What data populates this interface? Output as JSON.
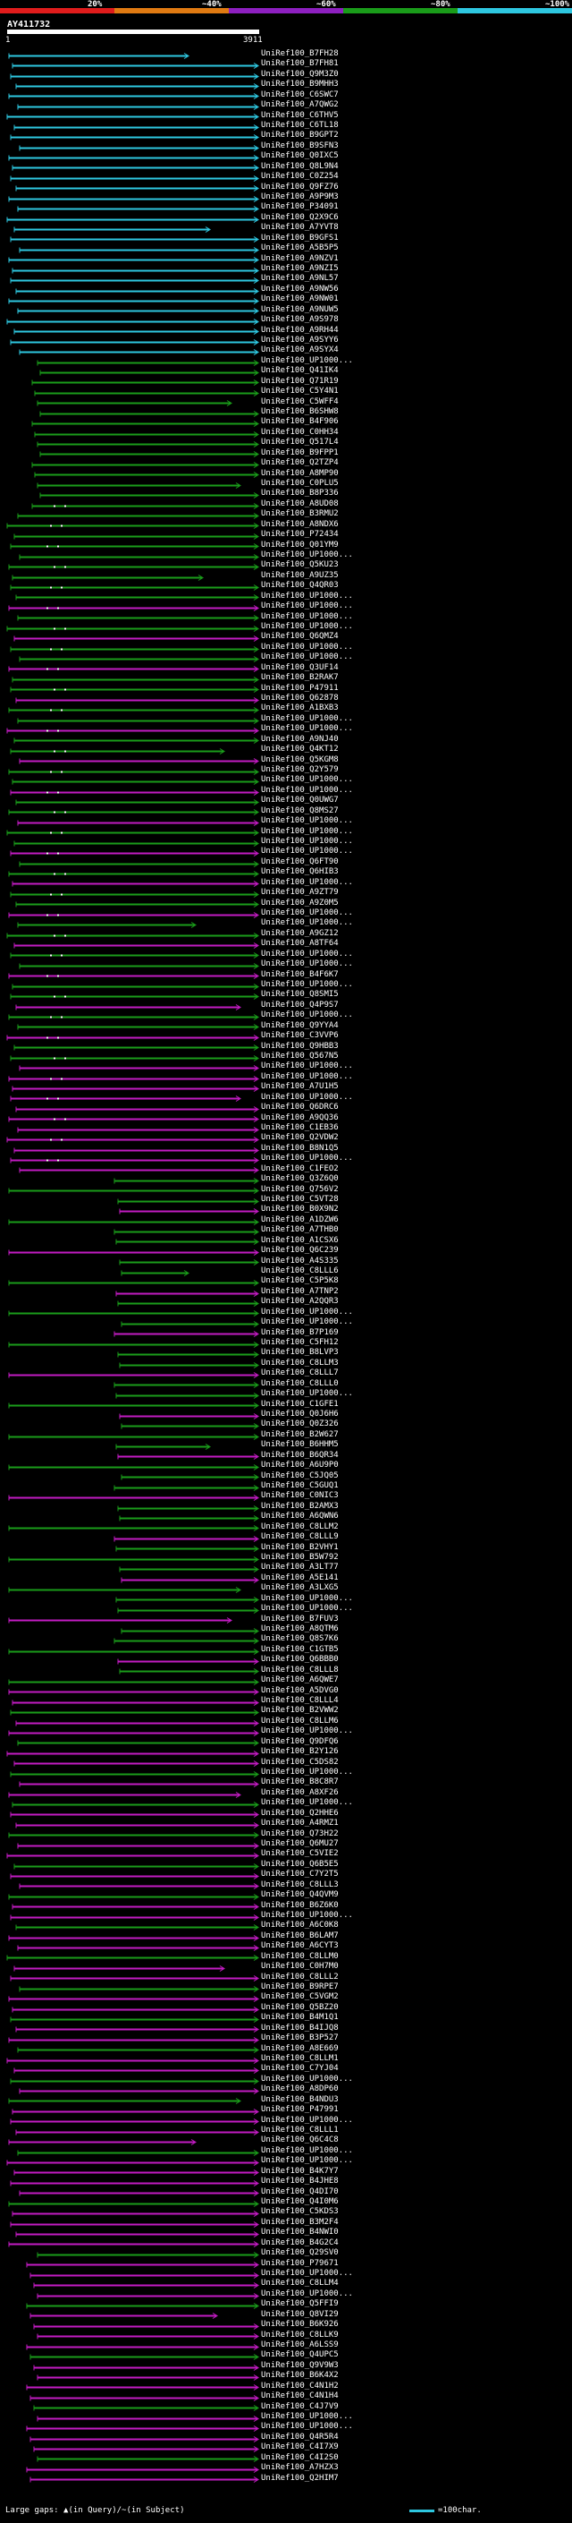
{
  "scale": {
    "labels": [
      "20%",
      "~40%",
      "~60%",
      "~80%",
      "~100%"
    ],
    "colors": [
      "#e01c1c",
      "#e07a12",
      "#8d1fbf",
      "#1a9c1a",
      "#2ec7e0"
    ]
  },
  "query": {
    "name": "AY411732",
    "start": "1",
    "end": "3911"
  },
  "colors": {
    "cyan": "#2ec7e0",
    "green": "#1a9c1a",
    "magenta": "#c21bc2",
    "dark": "#1f2f1f"
  },
  "hits": [
    "UniRef100_B7FH28",
    "UniRef100_B7FH81",
    "UniRef100_Q9M3Z0",
    "UniRef100_B9MHH3",
    "UniRef100_C6SWC7",
    "UniRef100_A7QWG2",
    "UniRef100_C6THV5",
    "UniRef100_C6TL18",
    "UniRef100_B9GPT2",
    "UniRef100_B9SFN3",
    "UniRef100_Q0IXC5",
    "UniRef100_Q8L9N4",
    "UniRef100_C0Z254",
    "UniRef100_Q9FZ76",
    "UniRef100_A9P9M3",
    "UniRef100_P34091",
    "UniRef100_Q2X9C6",
    "UniRef100_A7YVT8",
    "UniRef100_B9GFS1",
    "UniRef100_A5B5P5",
    "UniRef100_A9NZV1",
    "UniRef100_A9NZI5",
    "UniRef100_A9NL57",
    "UniRef100_A9NW56",
    "UniRef100_A9NW01",
    "UniRef100_A9NUW5",
    "UniRef100_A9S978",
    "UniRef100_A9RH44",
    "UniRef100_A9SYY6",
    "UniRef100_A9SYX4",
    "UniRef100_UP1000...",
    "UniRef100_Q41IK4",
    "UniRef100_Q71R19",
    "UniRef100_C5Y4N1",
    "UniRef100_C5WFF4",
    "UniRef100_B6SHW8",
    "UniRef100_B4F906",
    "UniRef100_C0HH34",
    "UniRef100_Q517L4",
    "UniRef100_B9FPP1",
    "UniRef100_Q2TZP4",
    "UniRef100_A8MP90",
    "UniRef100_C0PLU5",
    "UniRef100_B8P336",
    "UniRef100_A8UD08",
    "UniRef100_B3RMU2",
    "UniRef100_A8NDX6",
    "UniRef100_P72434",
    "UniRef100_Q01YM9",
    "UniRef100_UP1000...",
    "UniRef100_Q5KU23",
    "UniRef100_A9UZ35",
    "UniRef100_Q4QR03",
    "UniRef100_UP1000...",
    "UniRef100_UP1000...",
    "UniRef100_UP1000...",
    "UniRef100_UP1000...",
    "UniRef100_Q6QMZ4",
    "UniRef100_UP1000...",
    "UniRef100_UP1000...",
    "UniRef100_Q3UF14",
    "UniRef100_B2RAK7",
    "UniRef100_P47911",
    "UniRef100_Q62878",
    "UniRef100_A1BXB3",
    "UniRef100_UP1000...",
    "UniRef100_UP1000...",
    "UniRef100_A9NJ40",
    "UniRef100_Q4KT12",
    "UniRef100_Q5KGM8",
    "UniRef100_Q2Y579",
    "UniRef100_UP1000...",
    "UniRef100_UP1000...",
    "UniRef100_Q0UWG7",
    "UniRef100_Q8MS27",
    "UniRef100_UP1000...",
    "UniRef100_UP1000...",
    "UniRef100_UP1000...",
    "UniRef100_UP1000...",
    "UniRef100_Q6FT90",
    "UniRef100_Q6HIB3",
    "UniRef100_UP1000...",
    "UniRef100_A9ZT79",
    "UniRef100_A9Z0M5",
    "UniRef100_UP1000...",
    "UniRef100_UP1000...",
    "UniRef100_A9GZ12",
    "UniRef100_A8TF64",
    "UniRef100_UP1000...",
    "UniRef100_UP1000...",
    "UniRef100_B4F6K7",
    "UniRef100_UP1000...",
    "UniRef100_Q8SMI5",
    "UniRef100_Q4P9S7",
    "UniRef100_UP1000...",
    "UniRef100_Q9YYA4",
    "UniRef100_C3VVP6",
    "UniRef100_Q9HBB3",
    "UniRef100_Q567N5",
    "UniRef100_UP1000...",
    "UniRef100_UP1000...",
    "UniRef100_A7U1H5",
    "UniRef100_UP1000...",
    "UniRef100_Q6DRC6",
    "UniRef100_A9QQ36",
    "UniRef100_C1EB36",
    "UniRef100_Q2VDW2",
    "UniRef100_B8N1Q5",
    "UniRef100_UP1000...",
    "UniRef100_C1FEO2",
    "UniRef100_Q3Z6Q0",
    "UniRef100_Q756V2",
    "UniRef100_C5VT28",
    "UniRef100_B0X9N2",
    "UniRef100_A1DZW6",
    "UniRef100_A7THB0",
    "UniRef100_A1CSX6",
    "UniRef100_Q6C239",
    "UniRef100_A4S335",
    "UniRef100_C8LLL6",
    "UniRef100_C5P5K8",
    "UniRef100_A7TNP2",
    "UniRef100_A2QQR3",
    "UniRef100_UP1000...",
    "UniRef100_UP1000...",
    "UniRef100_B7P169",
    "UniRef100_C5FH12",
    "UniRef100_B8LVP3",
    "UniRef100_C8LLM3",
    "UniRef100_C8LLL7",
    "UniRef100_C8LLL0",
    "UniRef100_UP1000...",
    "UniRef100_C1GFE1",
    "UniRef100_Q0J6H6",
    "UniRef100_Q0Z326",
    "UniRef100_B2W627",
    "UniRef100_B6HHM5",
    "UniRef100_B6QR34",
    "UniRef100_A6U9P0",
    "UniRef100_C5JQ05",
    "UniRef100_C5GUQ1",
    "UniRef100_C0NIC3",
    "UniRef100_B2AMX3",
    "UniRef100_A6QWN6",
    "UniRef100_C8LLM2",
    "UniRef100_C8LLL9",
    "UniRef100_B2VHY1",
    "UniRef100_B5W792",
    "UniRef100_A3LT77",
    "UniRef100_A5E141",
    "UniRef100_A3LXG5",
    "UniRef100_UP1000...",
    "UniRef100_UP1000...",
    "UniRef100_B7FUV3",
    "UniRef100_A8QTM6",
    "UniRef100_Q8S7K6",
    "UniRef100_C1GTB5",
    "UniRef100_Q6BBB0",
    "UniRef100_C8LLL8",
    "UniRef100_A6QWE7",
    "UniRef100_A5DVG0",
    "UniRef100_C8LLL4",
    "UniRef100_B2VWW2",
    "UniRef100_C8LLM6",
    "UniRef100_UP1000...",
    "UniRef100_Q9DFQ6",
    "UniRef100_B2Y126",
    "UniRef100_C5DS82",
    "UniRef100_UP1000...",
    "UniRef100_B8C8R7",
    "UniRef100_A8XF26",
    "UniRef100_UP1000...",
    "UniRef100_Q2HHE6",
    "UniRef100_A4RMZ1",
    "UniRef100_Q73H22",
    "UniRef100_Q6MU27",
    "UniRef100_C5VIE2",
    "UniRef100_Q6B5E5",
    "UniRef100_C7Y2T5",
    "UniRef100_C8LLL3",
    "UniRef100_Q4QVM9",
    "UniRef100_B6Z6K0",
    "UniRef100_UP1000...",
    "UniRef100_A6C0K8",
    "UniRef100_B6LAM7",
    "UniRef100_A6CYT3",
    "UniRef100_C8LLM0",
    "UniRef100_C0H7M0",
    "UniRef100_C8LLL2",
    "UniRef100_B9RPE7",
    "UniRef100_C5VGM2",
    "UniRef100_Q5BZ20",
    "UniRef100_B4M1Q1",
    "UniRef100_B4IJQ8",
    "UniRef100_B3P527",
    "UniRef100_A8E669",
    "UniRef100_C8LLM1",
    "UniRef100_C7YJ04",
    "UniRef100_UP1000...",
    "UniRef100_A8DP60",
    "UniRef100_B4NDU3",
    "UniRef100_P47991",
    "UniRef100_UP1000...",
    "UniRef100_C8LLL1",
    "UniRef100_Q6C4C8",
    "UniRef100_UP1000...",
    "UniRef100_UP1000...",
    "UniRef100_B4K7Y7",
    "UniRef100_B4JHE8",
    "UniRef100_Q4DI70",
    "UniRef100_Q4I0M6",
    "UniRef100_C5KDS3",
    "UniRef100_B3M2F4",
    "UniRef100_B4NWI0",
    "UniRef100_B4G2C4",
    "UniRef100_Q29SV0",
    "UniRef100_P79671",
    "UniRef100_UP1000...",
    "UniRef100_C8LLM4",
    "UniRef100_UP1000...",
    "UniRef100_Q5FFI9",
    "UniRef100_Q8VI29",
    "UniRef100_B6K926",
    "UniRef100_C8LLK9",
    "UniRef100_A6LSS9",
    "UniRef100_Q4UPC5",
    "UniRef100_Q9V9W3",
    "UniRef100_B6K4X2",
    "UniRef100_C4N1H2",
    "UniRef100_C4N1H4",
    "UniRef100_C4J7V9",
    "UniRef100_UP1000...",
    "UniRef100_UP1000...",
    "UniRef100_Q4R5R4",
    "UniRef100_C4I7X9",
    "UniRef100_C4I2S0",
    "UniRef100_A7HZX3",
    "UniRef100_Q2HIM7"
  ],
  "legend": {
    "text": "Large gaps: ▲(in Query)/~(in Subject)",
    "right": "=100char."
  }
}
